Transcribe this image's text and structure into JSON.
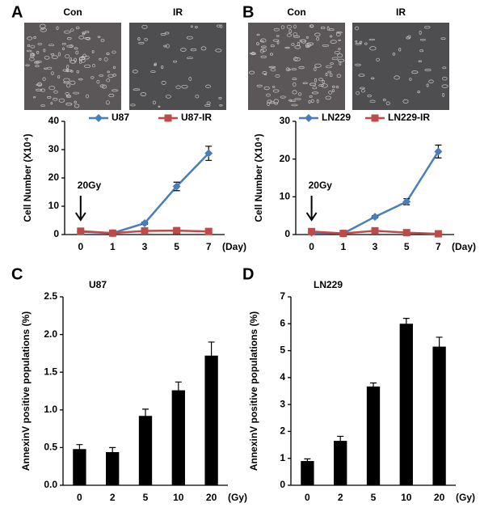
{
  "chart_data": [
    {
      "type": "line",
      "panel": "A",
      "images": [
        "Con",
        "IR"
      ],
      "y_label": "Cell Number (X10⁴)",
      "x_label": "(Day)",
      "annotation": "20Gy",
      "categories": [
        "0",
        "1",
        "3",
        "5",
        "7"
      ],
      "ylim": [
        0,
        40
      ],
      "yticks": [
        0,
        10,
        20,
        30,
        40
      ],
      "series": [
        {
          "name": "U87",
          "color": "#4a7ebb",
          "marker": "diamond",
          "values": [
            1,
            0.5,
            4,
            17,
            28.7
          ],
          "errors": [
            0.2,
            0.2,
            0.4,
            1.5,
            2.5
          ]
        },
        {
          "name": "U87-IR",
          "color": "#be4b48",
          "marker": "square",
          "values": [
            1.2,
            0.5,
            1.3,
            1.4,
            1.1
          ],
          "errors": [
            0.2,
            0.2,
            0.2,
            0.2,
            0.2
          ]
        }
      ]
    },
    {
      "type": "line",
      "panel": "B",
      "images": [
        "Con",
        "IR"
      ],
      "y_label": "Cell Number (X10⁴)",
      "x_label": "(Day)",
      "annotation": "20Gy",
      "categories": [
        "0",
        "1",
        "3",
        "5",
        "7"
      ],
      "ylim": [
        0,
        30
      ],
      "yticks": [
        0,
        10,
        20,
        30
      ],
      "series": [
        {
          "name": "LN229",
          "color": "#4a7ebb",
          "marker": "diamond",
          "values": [
            0.5,
            0.3,
            4.7,
            8.7,
            22
          ],
          "errors": [
            0.2,
            0.2,
            0.3,
            0.8,
            1.7
          ]
        },
        {
          "name": "LN229-IR",
          "color": "#be4b48",
          "marker": "square",
          "values": [
            0.8,
            0.3,
            1.0,
            0.5,
            0.2
          ],
          "errors": [
            0.2,
            0.2,
            0.2,
            0.2,
            0.2
          ]
        }
      ]
    },
    {
      "type": "bar",
      "panel": "C",
      "title": "U87",
      "y_label": "AnnexinV positive populations (%)",
      "x_label": "(Gy)",
      "color": "#000000",
      "categories": [
        "0",
        "2",
        "5",
        "10",
        "20"
      ],
      "values": [
        0.48,
        0.44,
        0.92,
        1.26,
        1.72
      ],
      "errors": [
        0.06,
        0.06,
        0.09,
        0.11,
        0.18
      ],
      "ylim": [
        0,
        2.5
      ],
      "yticks": [
        {
          "value": 0,
          "label": "0.0"
        },
        0.5,
        {
          "value": 1,
          "label": "1.0"
        },
        1.5,
        {
          "value": 2,
          "label": "2.0"
        },
        2.5
      ]
    },
    {
      "type": "bar",
      "panel": "D",
      "title": "LN229",
      "y_label": "AnnexinV positive populations (%)",
      "x_label": "(Gy)",
      "color": "#000000",
      "categories": [
        "0",
        "2",
        "5",
        "10",
        "20"
      ],
      "values": [
        0.9,
        1.65,
        3.67,
        6.0,
        5.15
      ],
      "errors": [
        0.08,
        0.17,
        0.13,
        0.2,
        0.35
      ],
      "ylim": [
        0,
        7
      ],
      "yticks": [
        0,
        1,
        2,
        3,
        4,
        5,
        6,
        7
      ]
    }
  ]
}
